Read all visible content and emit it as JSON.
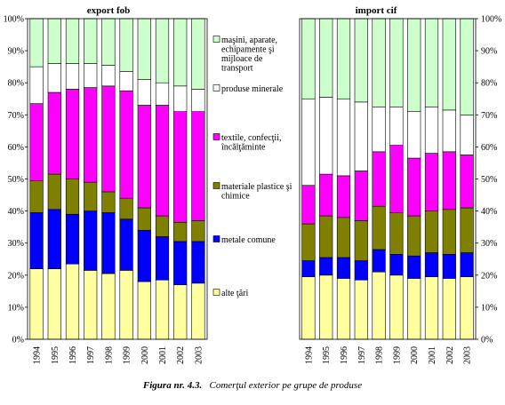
{
  "caption": {
    "label": "Figura nr. 4.3.",
    "text": "Comerţul exterior pe grupe de produse"
  },
  "chart_data": {
    "type": "bar",
    "stacked": true,
    "normalized_percent": true,
    "categories": [
      "1994",
      "1995",
      "1996",
      "1997",
      "1998",
      "1999",
      "2000",
      "2001",
      "2002",
      "2003"
    ],
    "ylim": [
      0,
      100
    ],
    "y_ticks": [
      "0%",
      "10%",
      "20%",
      "30%",
      "40%",
      "50%",
      "60%",
      "70%",
      "80%",
      "90%",
      "100%"
    ],
    "grid": false,
    "legend_position": "center",
    "panels": [
      {
        "title": "export fob",
        "series": [
          {
            "name": "alte ţări",
            "color": "#ffffa0",
            "values": [
              22,
              22,
              23.5,
              21.5,
              20.5,
              21.5,
              18,
              18.5,
              17,
              17.5
            ]
          },
          {
            "name": "metale comune",
            "color": "#0000ff",
            "values": [
              17.5,
              18.5,
              15.5,
              18.5,
              19,
              16,
              16,
              13.5,
              13.5,
              13
            ]
          },
          {
            "name": "materiale plastice şi chimice",
            "color": "#808000",
            "values": [
              10,
              11,
              11,
              9,
              6.5,
              6.5,
              7,
              6.5,
              6,
              6.5
            ]
          },
          {
            "name": "textile, confecţii, încălţăminte",
            "color": "#ff00ff",
            "values": [
              24,
              25.5,
              28,
              29.5,
              33,
              33.5,
              32,
              34.5,
              34.5,
              34
            ]
          },
          {
            "name": "produse minerale",
            "color": "#ffffff",
            "values": [
              11.5,
              9,
              8,
              7.5,
              6.5,
              6,
              8,
              7,
              8,
              7
            ]
          },
          {
            "name": "maşini, aparate, echipamente şi mijloace de transport",
            "color": "#ccffcc",
            "values": [
              15,
              14,
              14,
              14,
              14.5,
              16.5,
              19,
              20,
              21,
              22
            ]
          }
        ]
      },
      {
        "title": "import cif",
        "series": [
          {
            "name": "alte ţări",
            "color": "#ffffa0",
            "values": [
              19.5,
              20,
              19,
              18.5,
              21,
              20,
              19,
              19.5,
              19,
              19.5
            ]
          },
          {
            "name": "metale comune",
            "color": "#0000ff",
            "values": [
              5,
              5.5,
              6.5,
              6,
              7,
              6.5,
              7,
              7.5,
              7.5,
              7.5
            ]
          },
          {
            "name": "materiale plastice şi chimice",
            "color": "#808000",
            "values": [
              11.5,
              13,
              12.5,
              12.5,
              13.5,
              13,
              12.5,
              13,
              14,
              14
            ]
          },
          {
            "name": "textile, confecţii, încălţăminte",
            "color": "#ff00ff",
            "values": [
              12,
              13,
              13,
              15.5,
              17,
              21,
              18,
              18,
              18,
              16.5
            ]
          },
          {
            "name": "produse minerale",
            "color": "#ffffff",
            "values": [
              27,
              24,
              24,
              21.5,
              14,
              12,
              14.5,
              14.5,
              13,
              12.5
            ]
          },
          {
            "name": "maşini, aparate, echipamente şi mijloace de transport",
            "color": "#ccffcc",
            "values": [
              25,
              24.5,
              25,
              26,
              27.5,
              27.5,
              29,
              27.5,
              28.5,
              30
            ]
          }
        ]
      }
    ],
    "legend_entries": [
      {
        "label_lines": [
          "maşini, aparate,",
          "echipamente şi",
          "mijloace de",
          "transport"
        ],
        "color": "#ccffcc"
      },
      {
        "label_lines": [
          "produse minerale"
        ],
        "color": "#ffffff"
      },
      {
        "label_lines": [
          "textile, confecţii,",
          "încălţăminte"
        ],
        "color": "#ff00ff"
      },
      {
        "label_lines": [
          "materiale plastice şi",
          "chimice"
        ],
        "color": "#808000"
      },
      {
        "label_lines": [
          "metale comune"
        ],
        "color": "#0000ff"
      },
      {
        "label_lines": [
          "alte ţări"
        ],
        "color": "#ffffa0"
      }
    ]
  }
}
